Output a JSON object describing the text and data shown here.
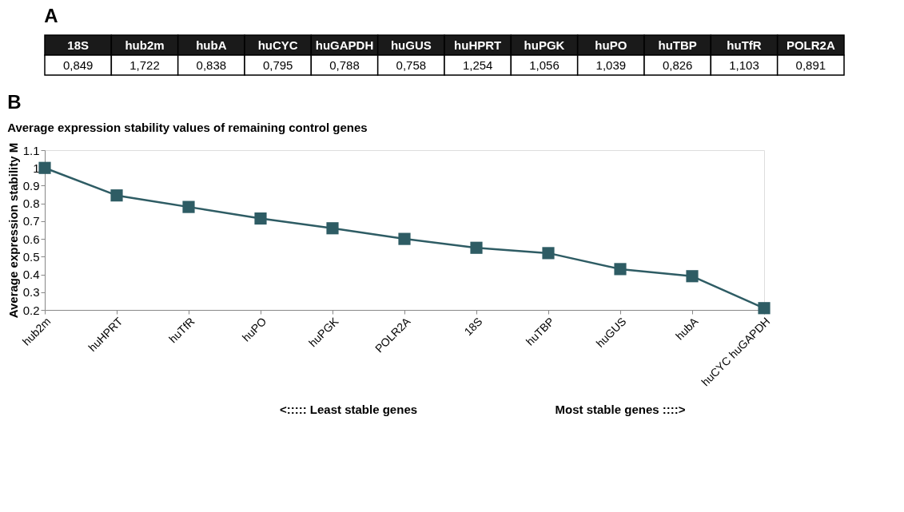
{
  "chart_data": [
    {
      "type": "other",
      "title": "A",
      "categories": [
        "18S",
        "hub2m",
        "hubA",
        "huCYC",
        "huGAPDH",
        "huGUS",
        "huHPRT",
        "huPGK",
        "huPO",
        "huTBP",
        "huTfR",
        "POLR2A"
      ],
      "value_labels": [
        "0,849",
        "1,722",
        "0,838",
        "0,795",
        "0,788",
        "0,758",
        "1,254",
        "1,056",
        "1,039",
        "0,826",
        "1,103",
        "0,891"
      ]
    },
    {
      "type": "line",
      "title": "B",
      "subtitle": "Average expression stability values of remaining control genes",
      "ylabel": "Average expression stability M",
      "categories": [
        "hub2m",
        "huHPRT",
        "huTfR",
        "huPO",
        "huPGK",
        "POLR2A",
        "18S",
        "huTBP",
        "huGUS",
        "hubA",
        "huCYC huGAPDH"
      ],
      "series": [
        {
          "color": "#2e5c64",
          "values": [
            1.0,
            0.845,
            0.78,
            0.715,
            0.66,
            0.6,
            0.55,
            0.52,
            0.43,
            0.39,
            0.21
          ]
        }
      ],
      "ylim": [
        0.2,
        1.1
      ],
      "yticks": [
        0.2,
        0.3,
        0.4,
        0.5,
        0.6,
        0.7,
        0.8,
        0.9,
        1,
        1.1
      ],
      "marker": "square",
      "line_style": "solid",
      "grid": false,
      "annotations": [
        "<::::: Least stable genes",
        "Most stable genes ::::>"
      ]
    }
  ]
}
